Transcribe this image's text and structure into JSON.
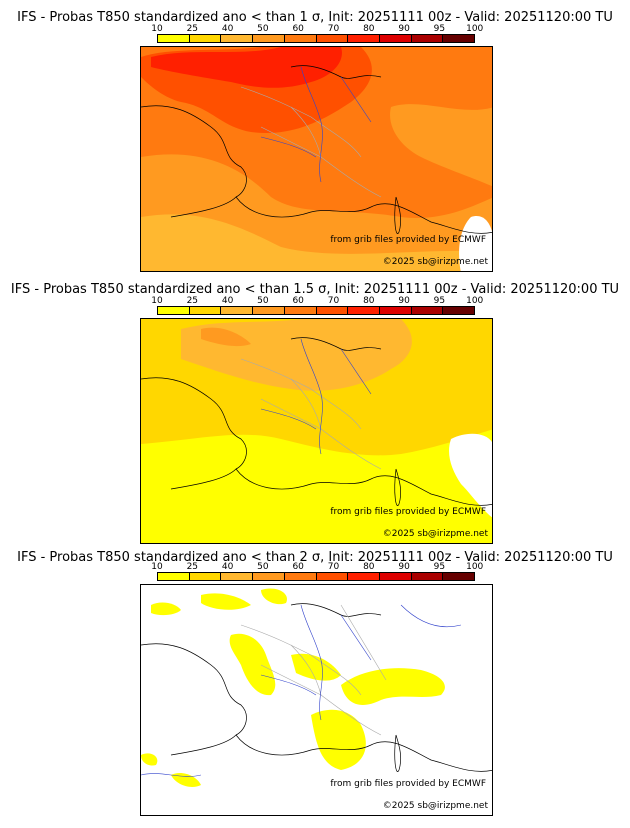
{
  "colorbar": {
    "ticks": [
      "10",
      "25",
      "40",
      "50",
      "60",
      "70",
      "80",
      "90",
      "95",
      "100"
    ],
    "colors": [
      "#ffff00",
      "#ffd700",
      "#ffb830",
      "#ff9a20",
      "#ff7a10",
      "#ff5000",
      "#ff2000",
      "#dd0000",
      "#aa0000",
      "#660000"
    ]
  },
  "panels": [
    {
      "title": "IFS - Probas T850  standardized ano < than 1 σ, Init: 20251111 00z - Valid: 20251120:00 TU",
      "threshold": "1 σ"
    },
    {
      "title": "IFS - Probas T850  standardized ano < than 1.5 σ, Init: 20251111 00z - Valid: 20251120:00 TU",
      "threshold": "1.5 σ"
    },
    {
      "title": "IFS - Probas T850  standardized ano < than 2 σ, Init: 20251111 00z - Valid: 20251120:00 TU",
      "threshold": "2 σ"
    }
  ],
  "credits": {
    "source": "from grib files provided by ECMWF",
    "copyright": "©2025 sb@irizpme.net"
  },
  "map_colors": {
    "sea_line": "#000000",
    "river": "#3344cc",
    "admin": "#aaaaaa",
    "background": "#ffffff"
  }
}
